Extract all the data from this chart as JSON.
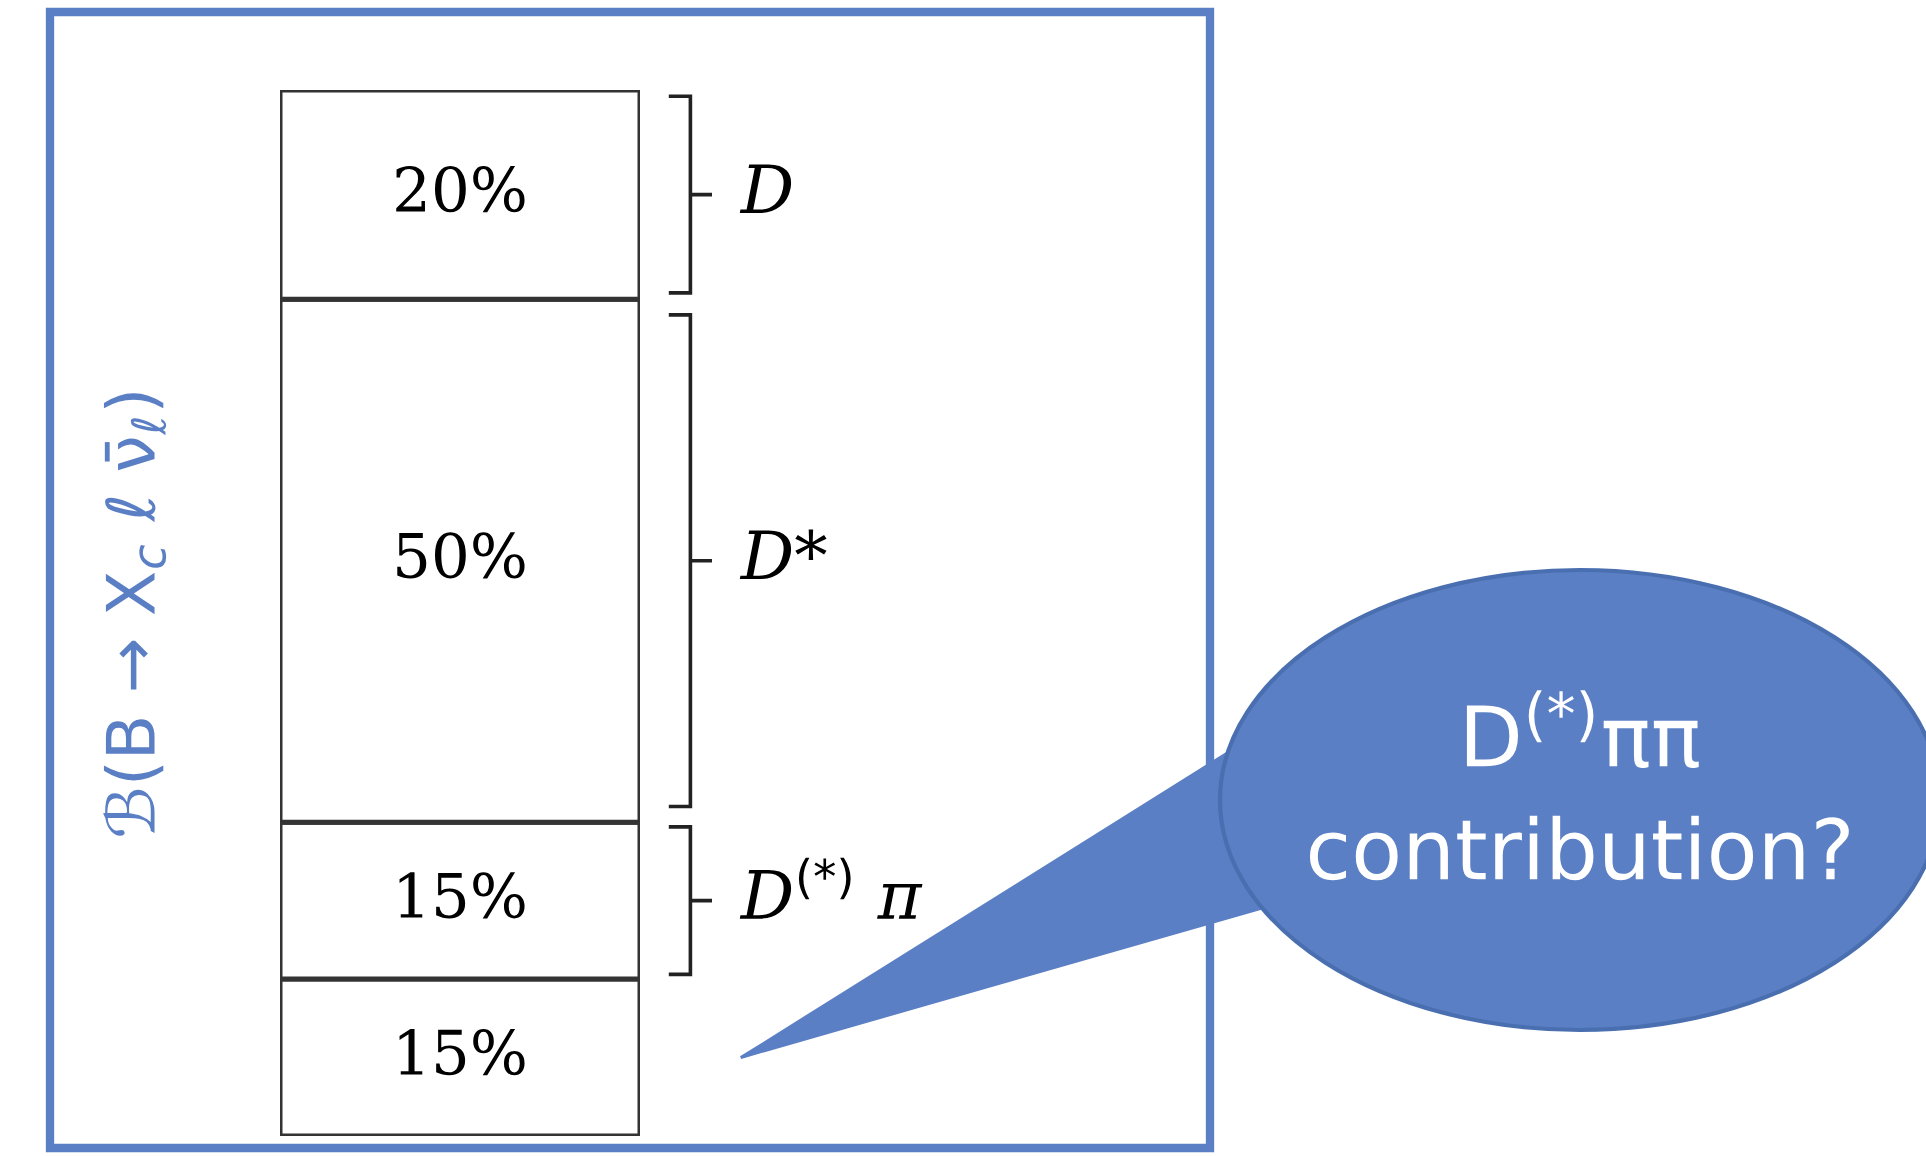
{
  "chart_data": {
    "type": "bar",
    "stacked": true,
    "categories": [
      null
    ],
    "ylabel": "ℬ(B → X$_{c}$ ℓ ν̄$_{ℓ}$)",
    "tick_labels": false,
    "grid": false,
    "series": [
      {
        "color": "#ffffff",
        "values": [
          15
        ],
        "value_labels": [
          "15%"
        ]
      },
      {
        "name": "D$^{(*)}$ π",
        "color": "#ffffff",
        "values": [
          15
        ],
        "value_labels": [
          "15%"
        ]
      },
      {
        "name": "D*",
        "color": "#ffffff",
        "values": [
          50
        ],
        "value_labels": [
          "50%"
        ]
      },
      {
        "name": "D",
        "color": "#ffffff",
        "values": [
          20
        ],
        "value_labels": [
          "20%"
        ]
      }
    ],
    "annotations": [
      "D$^{(*)}$ππ contribution?"
    ]
  }
}
